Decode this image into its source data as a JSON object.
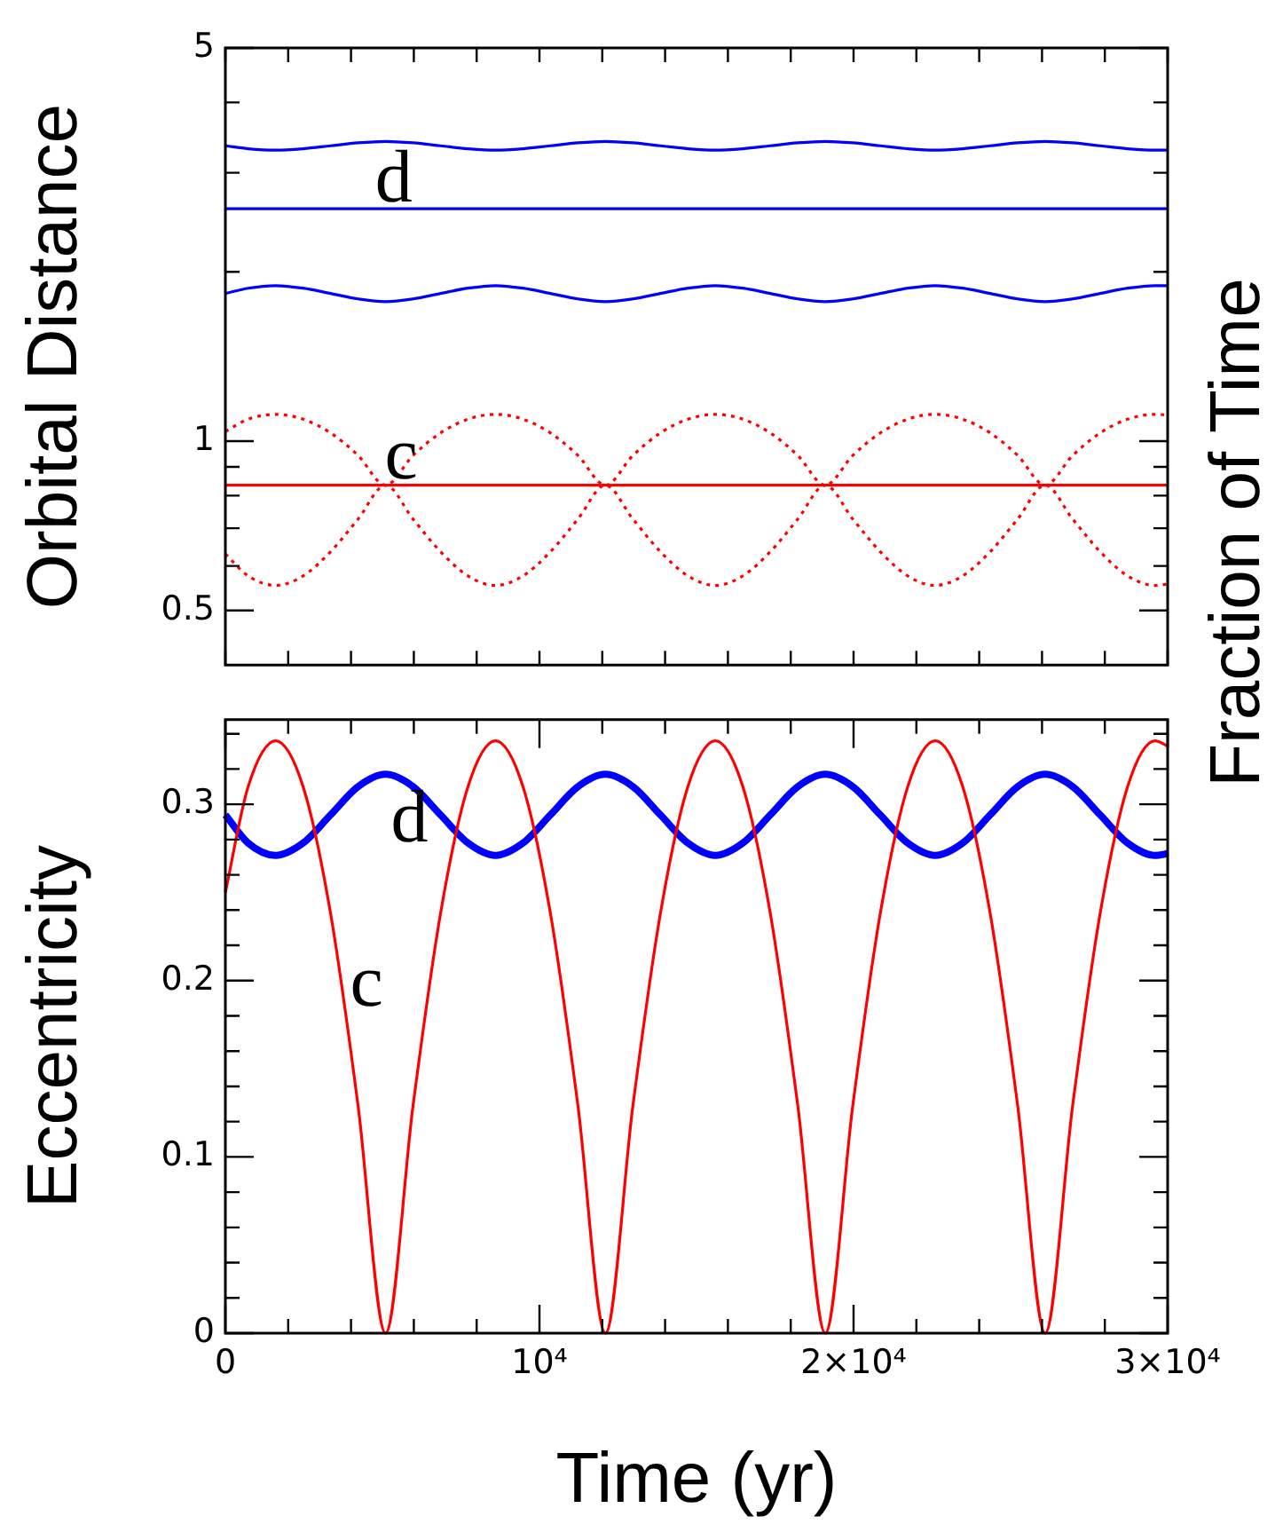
{
  "chart_data": [
    {
      "type": "line",
      "ylabel": "Orbital Distance",
      "log": "y",
      "xlim": [
        0,
        30000
      ],
      "ylim": [
        0.4,
        5
      ],
      "xticks": [
        {
          "value": 0,
          "label": null
        },
        {
          "value": 2000,
          "label": null
        },
        {
          "value": 4000,
          "label": null
        },
        {
          "value": 6000,
          "label": null
        },
        {
          "value": 8000,
          "label": null
        },
        {
          "value": 10000,
          "label": null
        },
        {
          "value": 12000,
          "label": null
        },
        {
          "value": 14000,
          "label": null
        },
        {
          "value": 16000,
          "label": null
        },
        {
          "value": 18000,
          "label": null
        },
        {
          "value": 20000,
          "label": null
        },
        {
          "value": 22000,
          "label": null
        },
        {
          "value": 24000,
          "label": null
        },
        {
          "value": 26000,
          "label": null
        },
        {
          "value": 28000,
          "label": null
        },
        {
          "value": 30000,
          "label": null
        }
      ],
      "yticks": [
        0.5,
        {
          "value": 0.6,
          "label": null
        },
        {
          "value": 0.7,
          "label": null
        },
        {
          "value": 0.8,
          "label": null
        },
        {
          "value": 0.9,
          "label": null
        },
        1,
        {
          "value": 2,
          "label": null
        },
        {
          "value": 3,
          "label": null
        },
        {
          "value": 4,
          "label": null
        },
        5
      ],
      "tick_labels": "y",
      "grid": false,
      "legend": false,
      "marker": "none",
      "x": [
        0,
        725,
        1600,
        2475,
        3350,
        4225,
        5100,
        5975,
        6850,
        7725,
        8600,
        9475,
        10350,
        11225,
        12100,
        12975,
        13850,
        14725,
        15600,
        16475,
        17350,
        18225,
        19100,
        19975,
        20850,
        21725,
        22600,
        23475,
        24350,
        25225,
        26100,
        26975,
        27850,
        28725,
        29600,
        30000
      ],
      "series": [
        {
          "color": "#0000ff",
          "line_style": "solid",
          "values": [
            3.35,
            3.31,
            3.29,
            3.31,
            3.35,
            3.39,
            3.41,
            3.39,
            3.35,
            3.31,
            3.29,
            3.31,
            3.35,
            3.39,
            3.41,
            3.39,
            3.35,
            3.31,
            3.29,
            3.31,
            3.35,
            3.39,
            3.41,
            3.39,
            3.35,
            3.31,
            3.29,
            3.31,
            3.35,
            3.39,
            3.41,
            3.39,
            3.35,
            3.31,
            3.29,
            3.29
          ]
        },
        {
          "color": "#0000ff",
          "line_style": "solid",
          "values": [
            2.59,
            2.59,
            2.59,
            2.59,
            2.59,
            2.59,
            2.59,
            2.59,
            2.59,
            2.59,
            2.59,
            2.59,
            2.59,
            2.59,
            2.59,
            2.59,
            2.59,
            2.59,
            2.59,
            2.59,
            2.59,
            2.59,
            2.59,
            2.59,
            2.59,
            2.59,
            2.59,
            2.59,
            2.59,
            2.59,
            2.59,
            2.59,
            2.59,
            2.59,
            2.59,
            2.59
          ]
        },
        {
          "color": "#0000ff",
          "line_style": "solid",
          "values": [
            1.83,
            1.87,
            1.89,
            1.87,
            1.83,
            1.79,
            1.77,
            1.79,
            1.83,
            1.87,
            1.89,
            1.87,
            1.83,
            1.79,
            1.77,
            1.79,
            1.83,
            1.87,
            1.89,
            1.87,
            1.83,
            1.79,
            1.77,
            1.79,
            1.83,
            1.87,
            1.89,
            1.87,
            1.83,
            1.79,
            1.77,
            1.79,
            1.83,
            1.87,
            1.89,
            1.89
          ]
        },
        {
          "color": "#ff0000",
          "line_style": "dotted",
          "values": [
            1.04,
            1.094,
            1.116,
            1.094,
            1.034,
            0.943,
            0.835,
            0.943,
            1.034,
            1.094,
            1.116,
            1.094,
            1.034,
            0.943,
            0.835,
            0.943,
            1.034,
            1.094,
            1.116,
            1.094,
            1.034,
            0.943,
            0.835,
            0.943,
            1.034,
            1.094,
            1.116,
            1.094,
            1.034,
            0.943,
            0.835,
            0.943,
            1.034,
            1.094,
            1.116,
            1.113
          ]
        },
        {
          "color": "#ff0000",
          "line_style": "solid",
          "values": [
            0.835,
            0.835,
            0.835,
            0.835,
            0.835,
            0.835,
            0.835,
            0.835,
            0.835,
            0.835,
            0.835,
            0.835,
            0.835,
            0.835,
            0.835,
            0.835,
            0.835,
            0.835,
            0.835,
            0.835,
            0.835,
            0.835,
            0.835,
            0.835,
            0.835,
            0.835,
            0.835,
            0.835,
            0.835,
            0.835,
            0.835,
            0.835,
            0.835,
            0.835,
            0.835,
            0.835
          ]
        },
        {
          "color": "#ff0000",
          "line_style": "dotted",
          "values": [
            0.63,
            0.576,
            0.554,
            0.576,
            0.636,
            0.727,
            0.835,
            0.727,
            0.636,
            0.576,
            0.554,
            0.576,
            0.636,
            0.727,
            0.835,
            0.727,
            0.636,
            0.576,
            0.554,
            0.576,
            0.636,
            0.727,
            0.835,
            0.727,
            0.636,
            0.576,
            0.554,
            0.576,
            0.636,
            0.727,
            0.835,
            0.727,
            0.636,
            0.576,
            0.554,
            0.557
          ]
        }
      ],
      "annotations": [
        {
          "text": "d",
          "x": 4600,
          "y": 2.59
        },
        {
          "text": "c",
          "x": 4900,
          "y": 0.835
        },
        "Fraction of Time"
      ]
    },
    {
      "type": "line",
      "ylabel": "Eccentricity",
      "xlabel": "Time (yr)",
      "xlim": [
        0,
        30000
      ],
      "ylim": [
        0,
        0.348
      ],
      "xticks": [
        0,
        {
          "value": 2000,
          "label": null
        },
        {
          "value": 4000,
          "label": null
        },
        {
          "value": 6000,
          "label": null
        },
        {
          "value": 8000,
          "label": null
        },
        {
          "value": 10000,
          "label": "10⁴"
        },
        {
          "value": 12000,
          "label": null
        },
        {
          "value": 14000,
          "label": null
        },
        {
          "value": 16000,
          "label": null
        },
        {
          "value": 18000,
          "label": null
        },
        {
          "value": 20000,
          "label": "2×10⁴"
        },
        {
          "value": 22000,
          "label": null
        },
        {
          "value": 24000,
          "label": null
        },
        {
          "value": 26000,
          "label": null
        },
        {
          "value": 28000,
          "label": null
        },
        {
          "value": 30000,
          "label": "3×10⁴"
        }
      ],
      "yticks": [
        0,
        {
          "value": 0.02,
          "label": null
        },
        {
          "value": 0.04,
          "label": null
        },
        {
          "value": 0.06,
          "label": null
        },
        {
          "value": 0.08,
          "label": null
        },
        0.1,
        {
          "value": 0.12,
          "label": null
        },
        {
          "value": 0.14,
          "label": null
        },
        {
          "value": 0.16,
          "label": null
        },
        {
          "value": 0.18,
          "label": null
        },
        0.2,
        {
          "value": 0.22,
          "label": null
        },
        {
          "value": 0.24,
          "label": null
        },
        {
          "value": 0.26,
          "label": null
        },
        {
          "value": 0.28,
          "label": null
        },
        0.3,
        {
          "value": 0.32,
          "label": null
        },
        {
          "value": 0.34,
          "label": null
        }
      ],
      "grid": false,
      "legend": false,
      "marker": "none",
      "x": [
        0,
        725,
        1600,
        2475,
        3350,
        4225,
        5100,
        5975,
        6850,
        7725,
        8600,
        9475,
        10350,
        11225,
        12100,
        12975,
        13850,
        14725,
        15600,
        16475,
        17350,
        18225,
        19100,
        19975,
        20850,
        21725,
        22600,
        23475,
        24350,
        25225,
        26100,
        26975,
        27850,
        28725,
        29600,
        30000
      ],
      "series": [
        {
          "color": "#ff0000",
          "line_style": "solid",
          "values": [
            0.25,
            0.31,
            0.336,
            0.31,
            0.238,
            0.129,
            0,
            0.129,
            0.238,
            0.31,
            0.336,
            0.31,
            0.238,
            0.129,
            0,
            0.129,
            0.238,
            0.31,
            0.336,
            0.31,
            0.238,
            0.129,
            0,
            0.129,
            0.238,
            0.31,
            0.336,
            0.31,
            0.238,
            0.129,
            0,
            0.129,
            0.238,
            0.31,
            0.336,
            0.333
          ]
        },
        {
          "color": "#0000ff",
          "line_style": "solid",
          "values": [
            0.294,
            0.278,
            0.271,
            0.278,
            0.294,
            0.31,
            0.317,
            0.31,
            0.294,
            0.278,
            0.271,
            0.278,
            0.294,
            0.31,
            0.317,
            0.31,
            0.294,
            0.278,
            0.271,
            0.278,
            0.294,
            0.31,
            0.317,
            0.31,
            0.294,
            0.278,
            0.271,
            0.278,
            0.294,
            0.31,
            0.317,
            0.31,
            0.294,
            0.278,
            0.271,
            0.272
          ]
        }
      ],
      "annotations": [
        {
          "text": "d",
          "x": 5100,
          "y": 0.317
        },
        {
          "text": "c",
          "x": 3800,
          "y": 0.182
        }
      ]
    }
  ]
}
